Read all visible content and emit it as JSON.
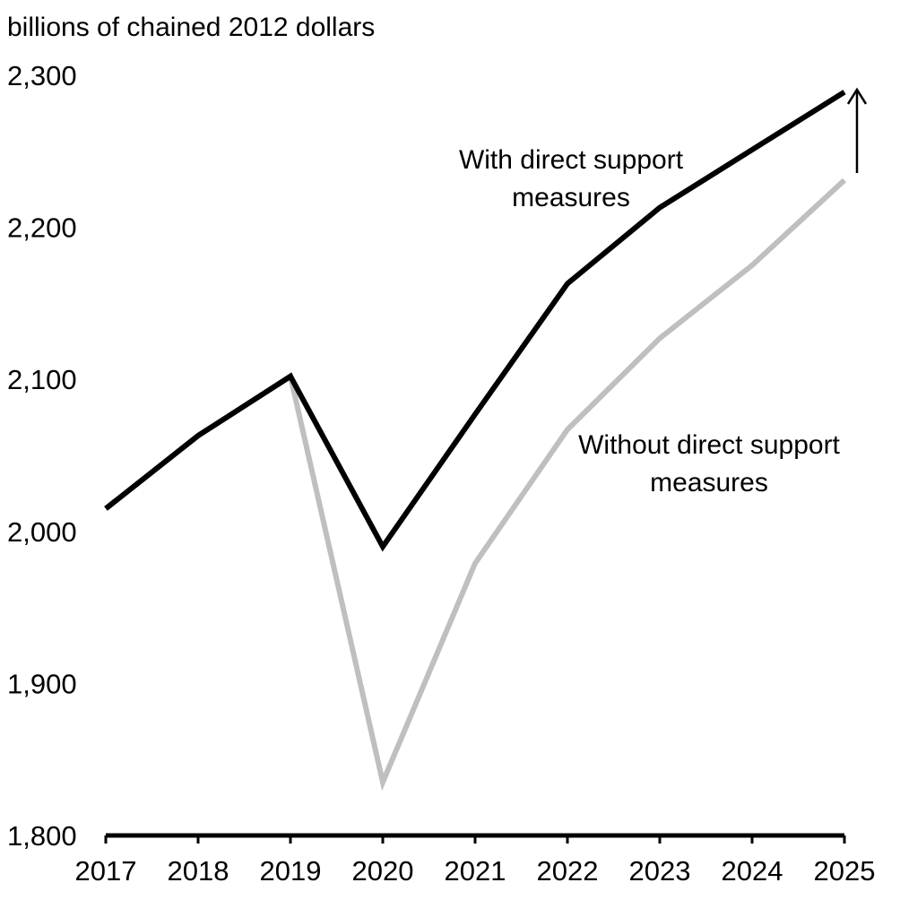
{
  "chart_data": {
    "type": "line",
    "ylabel": "billions of chained 2012 dollars",
    "x": [
      "2017",
      "2018",
      "2019",
      "2020",
      "2021",
      "2022",
      "2023",
      "2024",
      "2025"
    ],
    "ylim": [
      1800,
      2300
    ],
    "yticks": [
      1800,
      1900,
      2000,
      2100,
      2200,
      2300
    ],
    "ytick_labels": [
      "1,800",
      "1,900",
      "2,000",
      "2,100",
      "2,200",
      "2,300"
    ],
    "grid": false,
    "series": [
      {
        "name": "With direct support measures",
        "color": "#000000",
        "values": [
          2015,
          2063,
          2102,
          1990,
          2077,
          2163,
          2213,
          2251,
          2289
        ]
      },
      {
        "name": "Without direct support measures",
        "color": "#bfbfbf",
        "values": [
          2015,
          2063,
          2102,
          1835,
          1979,
          2067,
          2127,
          2175,
          2231
        ]
      }
    ],
    "annotations": [
      {
        "lines": [
          "With direct support",
          "measures"
        ],
        "series": 0
      },
      {
        "lines": [
          "Without direct support",
          "measures"
        ],
        "series": 1
      }
    ],
    "arrow": {
      "x": "2025",
      "from": 2231,
      "to": 2290,
      "direction": "up"
    }
  }
}
